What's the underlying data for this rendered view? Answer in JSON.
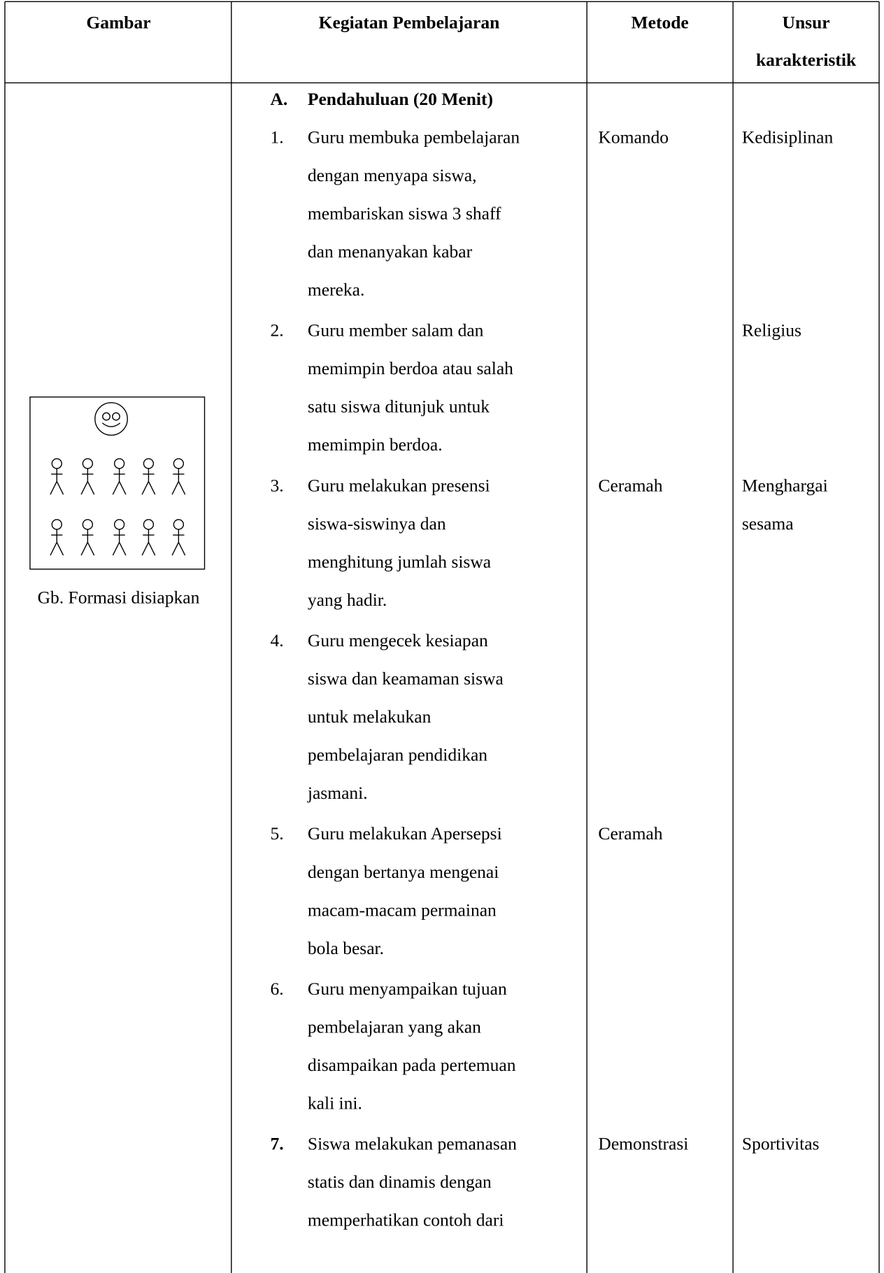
{
  "header": {
    "gambar": "Gambar",
    "kegiatan": "Kegiatan Pembelajaran",
    "metode": "Metode",
    "unsur": [
      "Unsur",
      "karakteristik"
    ]
  },
  "section": {
    "label": "A.",
    "title": "Pendahuluan (20 Menit)"
  },
  "figure": {
    "caption": "Gb. Formasi disiapkan"
  },
  "items": [
    {
      "number": "1.",
      "lines": [
        "Guru membuka pembelajaran",
        "dengan menyapa siswa,",
        "membariskan siswa 3 shaff",
        "dan menanyakan kabar",
        "mereka."
      ],
      "metode": "Komando",
      "unsur": [
        "Kedisiplinan"
      ]
    },
    {
      "number": "2.",
      "lines": [
        "Guru member salam dan",
        "memimpin berdoa atau salah",
        "satu  siswa ditunjuk untuk",
        "memimpin berdoa."
      ],
      "unsur": [
        "Religius"
      ]
    },
    {
      "number": "3.",
      "lines": [
        "Guru melakukan presensi",
        "siswa-siswinya dan",
        "menghitung jumlah siswa",
        "yang hadir."
      ],
      "metode": "Ceramah",
      "unsur": [
        "Menghargai",
        "sesama"
      ]
    },
    {
      "number": "4.",
      "lines": [
        "Guru mengecek kesiapan",
        "siswa dan keamaman siswa",
        "untuk melakukan",
        "pembelajaran pendidikan",
        "jasmani."
      ]
    },
    {
      "number": "5.",
      "lines": [
        "Guru melakukan Apersepsi",
        "dengan bertanya mengenai",
        "macam-macam permainan",
        "bola besar."
      ],
      "metode": "Ceramah"
    },
    {
      "number": "6.",
      "lines": [
        "Guru menyampaikan tujuan",
        "pembelajaran yang akan",
        "disampaikan pada pertemuan",
        "kali ini."
      ]
    },
    {
      "number": "7.",
      "number_bold": true,
      "lines": [
        "Siswa melakukan pemanasan",
        "statis dan dinamis dengan",
        "memperhatikan contoh dari"
      ],
      "metode": "Demonstrasi",
      "unsur": [
        "Sportivitas"
      ]
    }
  ]
}
